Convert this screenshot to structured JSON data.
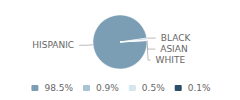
{
  "chart_data": {
    "type": "pie",
    "categories": [
      "HISPANIC",
      "BLACK",
      "ASIAN",
      "WHITE"
    ],
    "values": [
      98.5,
      0.9,
      0.5,
      0.1
    ],
    "value_labels": [
      "98.5%",
      "0.9%",
      "0.5%",
      "0.1%"
    ],
    "colors": [
      "#7b9eb5",
      "#a8c4d4",
      "#d4e6ee",
      "#2e4d66"
    ],
    "legend": "bottom"
  }
}
